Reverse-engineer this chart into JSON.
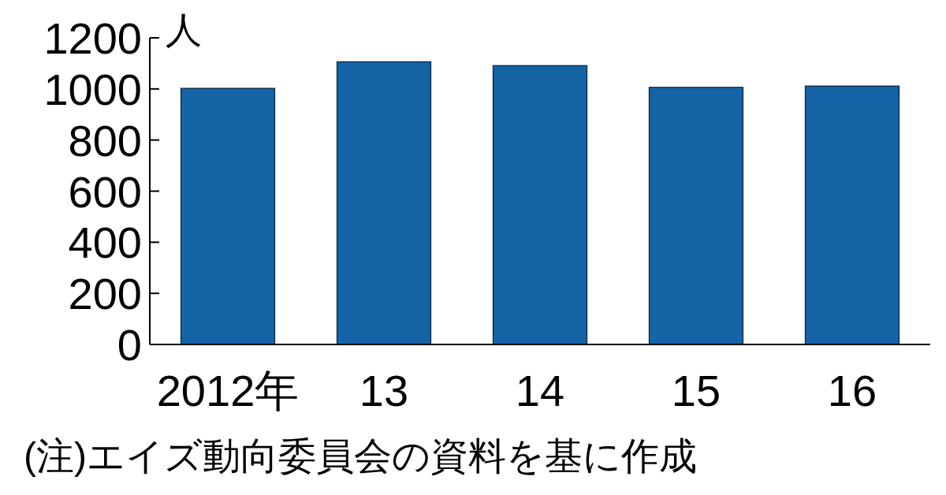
{
  "chart_data": {
    "type": "bar",
    "ylabel": "人",
    "categories": [
      "2012年",
      "13",
      "14",
      "15",
      "16"
    ],
    "series": [
      {
        "color": "#1565a6",
        "values": [
          1002,
          1106,
          1091,
          1006,
          1011
        ]
      }
    ],
    "ylim": [
      0,
      1200
    ],
    "yticks": [
      0,
      200,
      400,
      600,
      800,
      1000,
      1200
    ],
    "annotations": [
      "(注)エイズ動向委員会の資料を基に作成"
    ]
  }
}
